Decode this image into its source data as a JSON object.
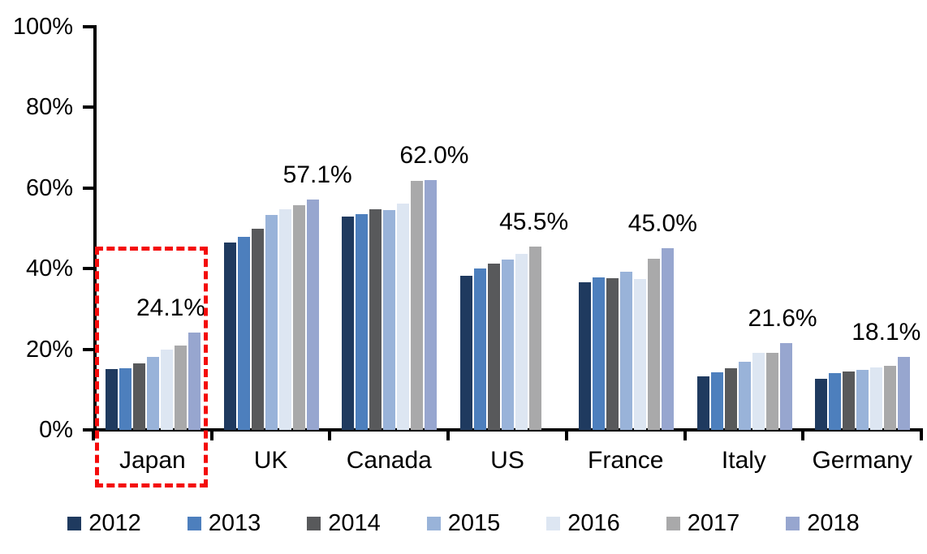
{
  "chart_data": {
    "type": "bar",
    "title": "",
    "categories": [
      "Japan",
      "UK",
      "Canada",
      "US",
      "France",
      "Italy",
      "Germany"
    ],
    "series": [
      {
        "name": "2012",
        "color": "#1f3a5f",
        "values": [
          15.0,
          46.5,
          53.0,
          38.2,
          36.6,
          13.3,
          12.6
        ]
      },
      {
        "name": "2013",
        "color": "#4d7fbd",
        "values": [
          15.2,
          47.8,
          53.5,
          40.0,
          37.8,
          14.2,
          14.1
        ]
      },
      {
        "name": "2014",
        "color": "#58595b",
        "values": [
          16.6,
          50.0,
          54.8,
          41.2,
          37.6,
          15.3,
          14.4
        ]
      },
      {
        "name": "2015",
        "color": "#99b3d9",
        "values": [
          18.1,
          53.3,
          54.6,
          42.3,
          39.3,
          16.9,
          14.8
        ]
      },
      {
        "name": "2016",
        "color": "#dde6f2",
        "values": [
          19.9,
          54.8,
          56.2,
          43.7,
          37.5,
          19.1,
          15.4
        ]
      },
      {
        "name": "2017",
        "color": "#a9a9aa",
        "values": [
          21.0,
          55.8,
          61.7,
          45.5,
          42.4,
          19.2,
          15.9
        ]
      },
      {
        "name": "2018",
        "color": "#97a6cf",
        "values": [
          24.1,
          57.1,
          62.0,
          null,
          45.0,
          21.6,
          18.1
        ]
      }
    ],
    "data_labels": [
      "24.1%",
      "57.1%",
      "62.0%",
      "45.5%",
      "45.0%",
      "21.6%",
      "18.1%"
    ],
    "y_axis": {
      "range": [
        0,
        100
      ],
      "ticks": [
        {
          "label": "0%",
          "value": 0
        },
        {
          "label": "20%",
          "value": 20
        },
        {
          "label": "40%",
          "value": 40
        },
        {
          "label": "60%",
          "value": 60
        },
        {
          "label": "80%",
          "value": 80
        },
        {
          "label": "100%",
          "value": 100
        }
      ]
    },
    "legend_position": "bottom",
    "grid": "off",
    "axis_color": "#000000",
    "highlight": {
      "target_category": "Japan",
      "shape": "dashed-rectangle",
      "color": "#f40b0b"
    }
  }
}
